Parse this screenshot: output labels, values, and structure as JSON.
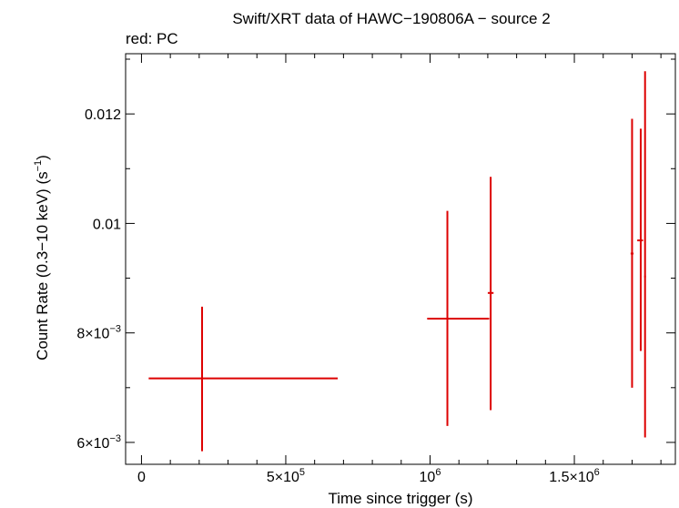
{
  "chart_data": {
    "type": "scatter",
    "title": "Swift/XRT data of HAWC−190806A − source 2",
    "subtitle": "red: PC",
    "xlabel": "Time since trigger (s)",
    "ylabel": "Count Rate (0.3−10 keV) (s",
    "ylabel_sup": "−1",
    "ylabel_end": ")",
    "xlim": [
      -55000,
      1850000
    ],
    "ylim": [
      0.0056,
      0.0131
    ],
    "x_ticks": [
      {
        "value": 0,
        "base": "0",
        "exp": ""
      },
      {
        "value": 500000,
        "base": "5×10",
        "exp": "5"
      },
      {
        "value": 1000000,
        "base": "10",
        "exp": "6"
      },
      {
        "value": 1500000,
        "base": "1.5×10",
        "exp": "6"
      }
    ],
    "y_ticks": [
      {
        "value": 0.006,
        "base": "6×10",
        "exp": "−3"
      },
      {
        "value": 0.008,
        "base": "8×10",
        "exp": "−3"
      },
      {
        "value": 0.01,
        "base": "0.01",
        "exp": ""
      },
      {
        "value": 0.012,
        "base": "0.012",
        "exp": ""
      }
    ],
    "grid": false,
    "series": [
      {
        "color": "#dd0000",
        "points": [
          {
            "x": 210000,
            "xlo": 25000,
            "xhi": 680000,
            "y": 0.00717,
            "ylo": 0.00584,
            "yhi": 0.00848
          },
          {
            "x": 1060000,
            "xlo": 990000,
            "xhi": 1205000,
            "y": 0.00826,
            "ylo": 0.0063,
            "yhi": 0.01023
          },
          {
            "x": 1210000,
            "xlo": 1200000,
            "xhi": 1220000,
            "y": 0.00873,
            "ylo": 0.00659,
            "yhi": 0.01085
          },
          {
            "x": 1700000,
            "xlo": 1695000,
            "xhi": 1705000,
            "y": 0.00945,
            "ylo": 0.007,
            "yhi": 0.01191
          },
          {
            "x": 1730000,
            "xlo": 1718000,
            "xhi": 1738000,
            "y": 0.00969,
            "ylo": 0.00767,
            "yhi": 0.01173
          },
          {
            "x": 1745000,
            "xlo": 1742000,
            "xhi": 1748000,
            "y": 0.00903,
            "ylo": 0.00609,
            "yhi": 0.01278
          }
        ]
      }
    ]
  }
}
